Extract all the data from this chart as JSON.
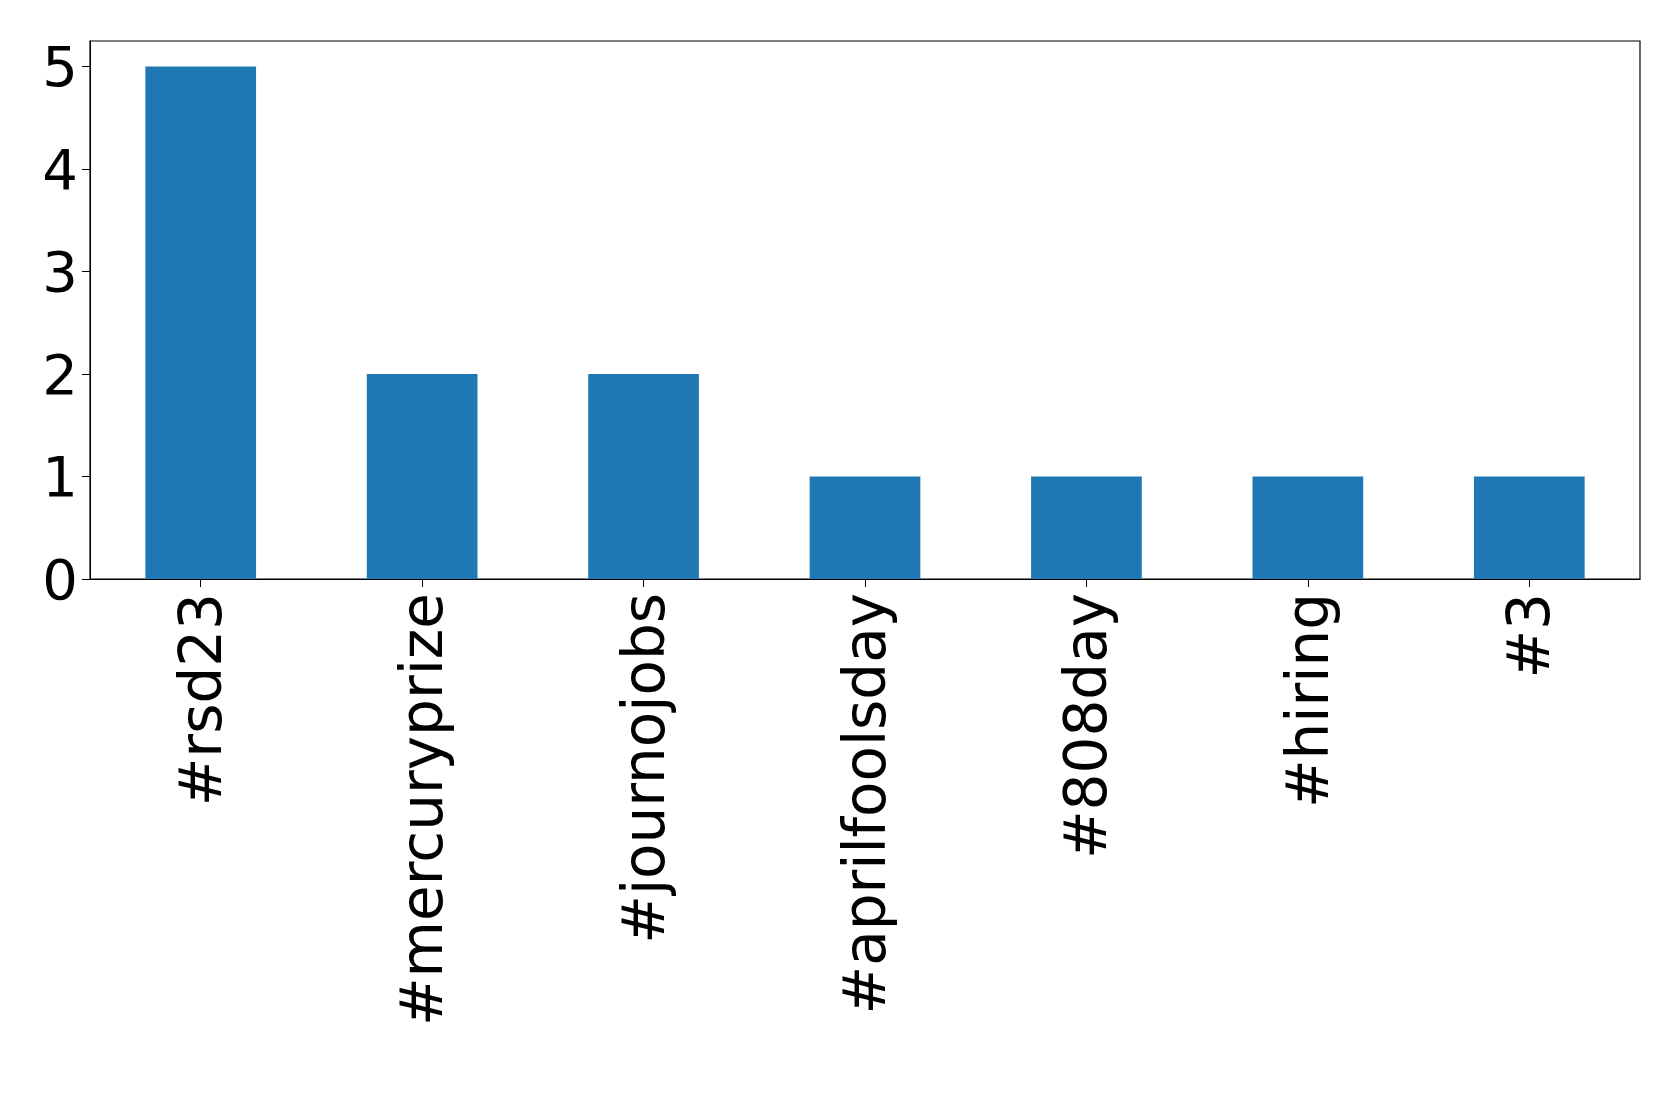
{
  "chart_data": {
    "type": "bar",
    "categories": [
      "#rsd23",
      "#mercuryprize",
      "#journojobs",
      "#aprilfoolsday",
      "#808day",
      "#hiring",
      "#3"
    ],
    "values": [
      5,
      2,
      2,
      1,
      1,
      1,
      1
    ],
    "color": "#1f77b4",
    "ylim": [
      0,
      5.25
    ],
    "yticks": [
      0,
      1,
      2,
      3,
      4,
      5
    ]
  }
}
